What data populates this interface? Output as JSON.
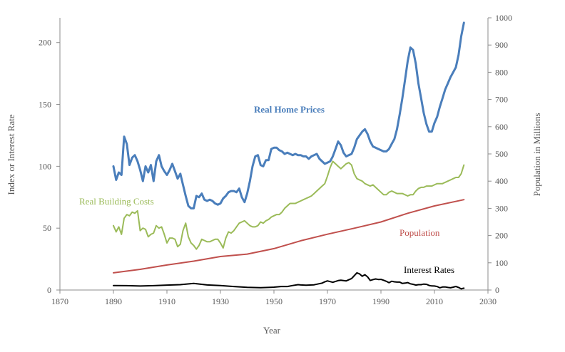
{
  "chart_data": {
    "type": "line",
    "title": "",
    "xlabel": "Year",
    "ylabel_left": "Index or Interest Rate",
    "ylabel_right": "Population in Millions",
    "xlim": [
      1870,
      2030
    ],
    "ylim_left": [
      0,
      220
    ],
    "ylim_right": [
      0,
      1000
    ],
    "x_ticks": [
      1870,
      1890,
      1910,
      1930,
      1950,
      1970,
      1990,
      2010,
      2030
    ],
    "y_left_ticks": [
      0,
      50,
      100,
      150,
      200
    ],
    "y_right_ticks": [
      0,
      100,
      200,
      300,
      400,
      500,
      600,
      700,
      800,
      900,
      1000
    ],
    "x_tick_labels": [
      "1870",
      "1890",
      "1910",
      "1930",
      "1950",
      "1970",
      "1990",
      "2010",
      "2030"
    ],
    "y_left_tick_labels": [
      "0",
      "50",
      "100",
      "150",
      "200"
    ],
    "y_right_tick_labels": [
      "0",
      "100",
      "200",
      "300",
      "400",
      "500",
      "600",
      "700",
      "800",
      "900",
      "1000"
    ],
    "grid": false,
    "series": [
      {
        "name": "Real Home Prices",
        "axis": "left",
        "color": "#4a7ebb",
        "x": [
          1890,
          1891,
          1892,
          1893,
          1894,
          1895,
          1896,
          1897,
          1898,
          1899,
          1900,
          1901,
          1902,
          1903,
          1904,
          1905,
          1906,
          1907,
          1908,
          1909,
          1910,
          1911,
          1912,
          1913,
          1914,
          1915,
          1916,
          1917,
          1918,
          1919,
          1920,
          1921,
          1922,
          1923,
          1924,
          1925,
          1926,
          1927,
          1928,
          1929,
          1930,
          1931,
          1932,
          1933,
          1934,
          1935,
          1936,
          1937,
          1938,
          1939,
          1940,
          1941,
          1942,
          1943,
          1944,
          1945,
          1946,
          1947,
          1948,
          1949,
          1950,
          1951,
          1952,
          1953,
          1954,
          1955,
          1956,
          1957,
          1958,
          1959,
          1960,
          1961,
          1962,
          1963,
          1964,
          1965,
          1966,
          1967,
          1968,
          1969,
          1970,
          1971,
          1972,
          1973,
          1974,
          1975,
          1976,
          1977,
          1978,
          1979,
          1980,
          1981,
          1982,
          1983,
          1984,
          1985,
          1986,
          1987,
          1988,
          1989,
          1990,
          1991,
          1992,
          1993,
          1994,
          1995,
          1996,
          1997,
          1998,
          1999,
          2000,
          2001,
          2002,
          2003,
          2004,
          2005,
          2006,
          2007,
          2008,
          2009,
          2010,
          2011,
          2012,
          2013,
          2014,
          2015,
          2016,
          2017,
          2018,
          2019,
          2020,
          2021
        ],
        "y": [
          100,
          89,
          95,
          93,
          124,
          118,
          101,
          107,
          109,
          104,
          97,
          88,
          100,
          95,
          101,
          88,
          104,
          109,
          100,
          96,
          93,
          97,
          102,
          96,
          90,
          94,
          85,
          76,
          68,
          66,
          66,
          76,
          75,
          78,
          73,
          72,
          73,
          72,
          70,
          69,
          70,
          74,
          76,
          79,
          80,
          80,
          79,
          82,
          75,
          71,
          78,
          88,
          100,
          108,
          109,
          101,
          100,
          105,
          105,
          114,
          115,
          115,
          113,
          112,
          110,
          111,
          110,
          109,
          110,
          109,
          109,
          108,
          108,
          106,
          108,
          109,
          110,
          106,
          104,
          102,
          103,
          104,
          108,
          114,
          120,
          117,
          111,
          108,
          109,
          110,
          115,
          122,
          125,
          128,
          130,
          126,
          120,
          116,
          115,
          114,
          113,
          112,
          112,
          114,
          118,
          122,
          130,
          142,
          155,
          170,
          185,
          196,
          194,
          183,
          167,
          155,
          143,
          134,
          128,
          128,
          135,
          140,
          148,
          155,
          162,
          167,
          172,
          176,
          180,
          190,
          205,
          216
        ]
      },
      {
        "name": "Real Building Costs",
        "axis": "left",
        "color": "#9bbb59",
        "x": [
          1890,
          1891,
          1892,
          1893,
          1894,
          1895,
          1896,
          1897,
          1898,
          1899,
          1900,
          1901,
          1902,
          1903,
          1904,
          1905,
          1906,
          1907,
          1908,
          1909,
          1910,
          1911,
          1912,
          1913,
          1914,
          1915,
          1916,
          1917,
          1918,
          1919,
          1920,
          1921,
          1922,
          1923,
          1924,
          1925,
          1926,
          1927,
          1928,
          1929,
          1930,
          1931,
          1932,
          1933,
          1934,
          1935,
          1936,
          1937,
          1938,
          1939,
          1940,
          1941,
          1942,
          1943,
          1944,
          1945,
          1946,
          1947,
          1948,
          1949,
          1950,
          1951,
          1952,
          1953,
          1954,
          1955,
          1956,
          1957,
          1958,
          1959,
          1960,
          1961,
          1962,
          1963,
          1964,
          1965,
          1966,
          1967,
          1968,
          1969,
          1970,
          1971,
          1972,
          1973,
          1974,
          1975,
          1976,
          1977,
          1978,
          1979,
          1980,
          1981,
          1982,
          1983,
          1984,
          1985,
          1986,
          1987,
          1988,
          1989,
          1990,
          1991,
          1992,
          1993,
          1994,
          1995,
          1996,
          1997,
          1998,
          1999,
          2000,
          2001,
          2002,
          2003,
          2004,
          2005,
          2006,
          2007,
          2008,
          2009,
          2010,
          2011,
          2012,
          2013,
          2014,
          2015,
          2016,
          2017,
          2018,
          2019,
          2020,
          2021
        ],
        "y": [
          52,
          47,
          51,
          45,
          58,
          61,
          60,
          63,
          62,
          64,
          48,
          50,
          49,
          43,
          45,
          46,
          52,
          50,
          51,
          45,
          38,
          42,
          42,
          41,
          35,
          37,
          48,
          54,
          43,
          38,
          36,
          33,
          36,
          41,
          40,
          39,
          39,
          40,
          41,
          41,
          38,
          34,
          42,
          47,
          46,
          48,
          51,
          54,
          55,
          56,
          54,
          52,
          51,
          51,
          52,
          55,
          54,
          56,
          57,
          59,
          60,
          61,
          61,
          63,
          66,
          68,
          70,
          70,
          70,
          71,
          72,
          73,
          74,
          75,
          76,
          78,
          80,
          82,
          84,
          86,
          92,
          99,
          104,
          102,
          100,
          98,
          100,
          102,
          103,
          101,
          94,
          90,
          89,
          88,
          86,
          85,
          84,
          85,
          83,
          81,
          79,
          77,
          77,
          79,
          80,
          79,
          78,
          78,
          78,
          77,
          76,
          77,
          77,
          80,
          82,
          83,
          83,
          84,
          84,
          84,
          85,
          86,
          86,
          86,
          87,
          88,
          89,
          90,
          91,
          91,
          94,
          101
        ]
      },
      {
        "name": "Population",
        "axis": "right",
        "color": "#c0504d",
        "x": [
          1890,
          1900,
          1910,
          1920,
          1930,
          1940,
          1950,
          1960,
          1970,
          1980,
          1990,
          2000,
          2010,
          2021
        ],
        "y": [
          63,
          76,
          92,
          106,
          123,
          132,
          152,
          181,
          205,
          227,
          250,
          282,
          309,
          332
        ]
      },
      {
        "name": "Interest Rates",
        "axis": "left",
        "color": "#000000",
        "x": [
          1890,
          1895,
          1900,
          1905,
          1910,
          1915,
          1920,
          1925,
          1930,
          1935,
          1940,
          1945,
          1950,
          1953,
          1955,
          1957,
          1959,
          1960,
          1962,
          1965,
          1968,
          1969,
          1970,
          1972,
          1974,
          1975,
          1977,
          1979,
          1980,
          1981,
          1982,
          1983,
          1984,
          1985,
          1986,
          1987,
          1988,
          1989,
          1990,
          1991,
          1992,
          1993,
          1994,
          1995,
          1996,
          1997,
          1998,
          1999,
          2000,
          2001,
          2002,
          2003,
          2004,
          2005,
          2006,
          2007,
          2008,
          2009,
          2010,
          2011,
          2012,
          2013,
          2014,
          2015,
          2016,
          2017,
          2018,
          2019,
          2020,
          2021
        ],
        "y": [
          3.6,
          3.5,
          3.2,
          3.5,
          4.0,
          4.3,
          5.3,
          4.1,
          3.6,
          2.8,
          2.2,
          1.9,
          2.3,
          2.9,
          2.8,
          3.6,
          4.3,
          4.1,
          3.9,
          4.2,
          5.6,
          6.6,
          7.4,
          6.2,
          7.6,
          7.9,
          7.4,
          9.3,
          11.5,
          13.9,
          13.0,
          11.1,
          12.4,
          10.6,
          7.7,
          8.4,
          8.9,
          8.5,
          8.6,
          7.9,
          7.0,
          5.9,
          7.1,
          6.6,
          6.4,
          6.4,
          5.3,
          5.6,
          6.0,
          5.0,
          4.6,
          4.0,
          4.3,
          4.3,
          4.8,
          4.6,
          3.7,
          3.3,
          3.2,
          2.8,
          1.8,
          2.4,
          2.5,
          2.1,
          1.8,
          2.3,
          2.9,
          2.1,
          0.9,
          1.5
        ]
      }
    ],
    "annotations": [
      {
        "text": "Real Home Prices",
        "series": "Real Home Prices"
      },
      {
        "text": "Real Building Costs",
        "series": "Real Building Costs"
      },
      {
        "text": "Population",
        "series": "Population"
      },
      {
        "text": "Interest Rates",
        "series": "Interest Rates"
      }
    ]
  }
}
